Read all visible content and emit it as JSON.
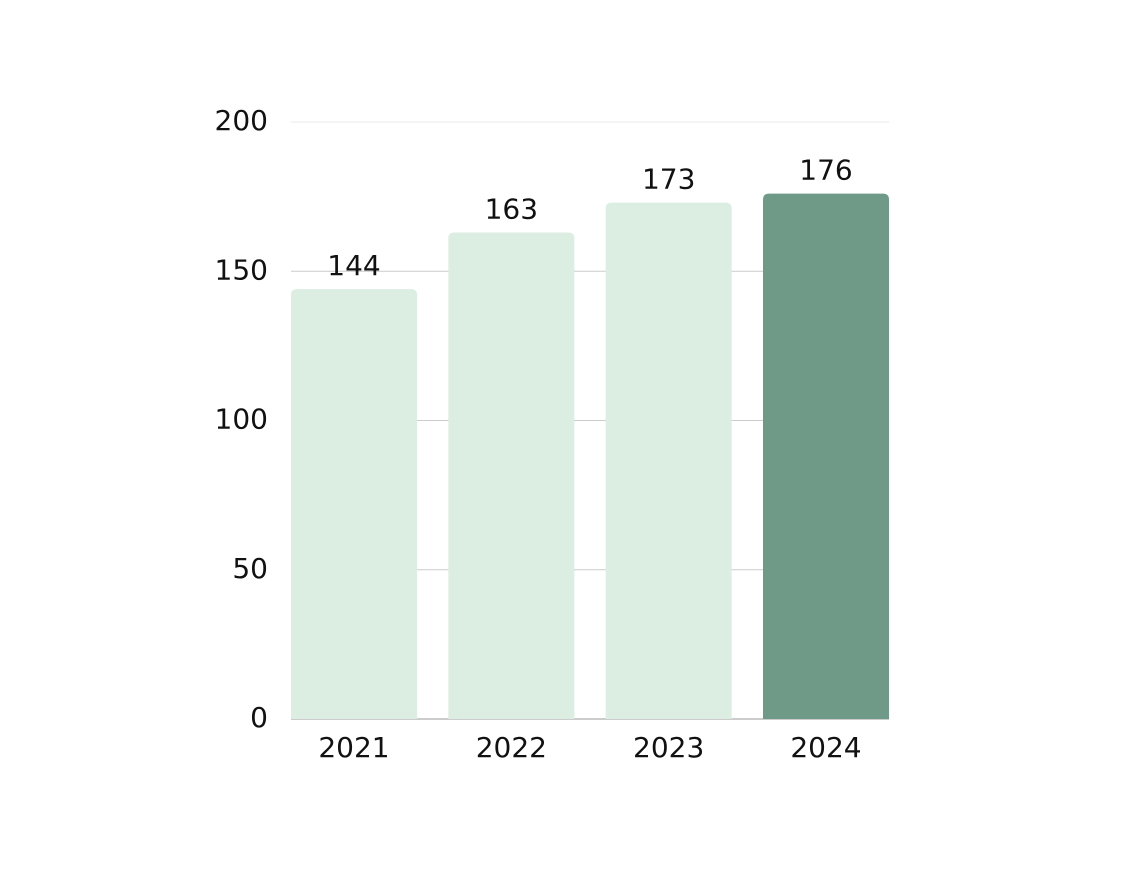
{
  "chart_data": {
    "type": "bar",
    "categories": [
      "2021",
      "2022",
      "2023",
      "2024"
    ],
    "values": [
      144,
      163,
      173,
      176
    ],
    "colors": [
      "#dbeee1",
      "#dbeee1",
      "#dbeee1",
      "#6f9a88"
    ],
    "ylim": [
      0,
      200
    ],
    "yticks": [
      0,
      50,
      100,
      150,
      200
    ],
    "grid": true
  }
}
